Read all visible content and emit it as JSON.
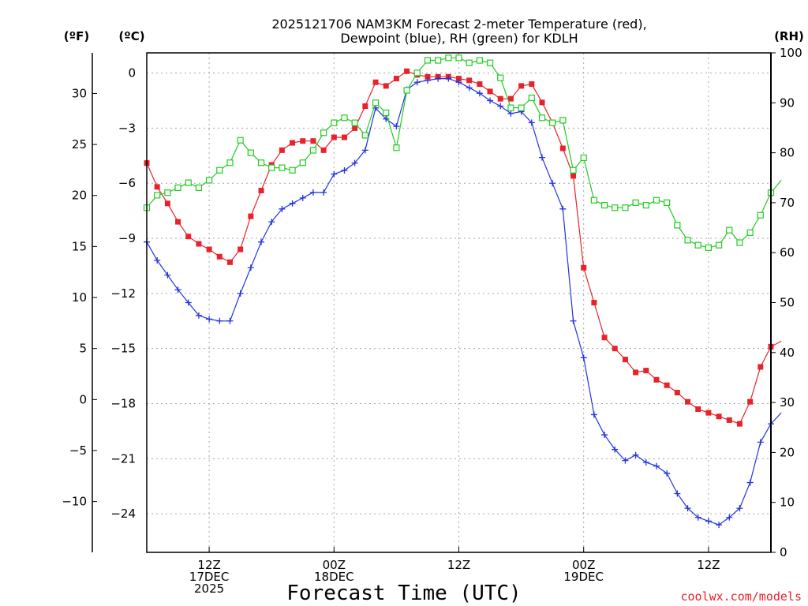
{
  "chart_data": {
    "type": "line",
    "title_line1": "2025121706 NAM3KM Forecast 2-meter Temperature (red),",
    "title_line2": "Dewpoint (blue), RH (green) for KDLH",
    "xlabel": "Forecast Time (UTC)",
    "credit": "coolwx.com/models",
    "units": {
      "fahrenheit": "(ºF)",
      "celsius": "(ºC)",
      "rh": "(RH)"
    },
    "x_range_hours": [
      0,
      60
    ],
    "celsius_axis": {
      "range": [
        -26.1,
        1.1
      ],
      "ticks": [
        0,
        -3,
        -6,
        -9,
        -12,
        -15,
        -18,
        -21,
        -24
      ]
    },
    "fahrenheit_axis": {
      "ticks": [
        30,
        25,
        20,
        15,
        10,
        5,
        0,
        -5,
        -10
      ],
      "labels": [
        "30",
        "25",
        "20",
        "15",
        "10",
        "5",
        "0",
        "−5",
        "−10"
      ]
    },
    "rh_axis": {
      "range": [
        0,
        100
      ],
      "ticks": [
        100,
        90,
        80,
        70,
        60,
        50,
        40,
        30,
        20,
        10,
        0
      ]
    },
    "x_ticks": [
      {
        "hour": 6,
        "lines": [
          "12Z",
          "17DEC",
          "2025"
        ]
      },
      {
        "hour": 18,
        "lines": [
          "00Z",
          "18DEC"
        ]
      },
      {
        "hour": 30,
        "lines": [
          "12Z"
        ]
      },
      {
        "hour": 42,
        "lines": [
          "00Z",
          "19DEC"
        ]
      },
      {
        "hour": 54,
        "lines": [
          "12Z"
        ]
      }
    ],
    "series": [
      {
        "name": "2-meter Temperature",
        "units": "C",
        "axis": "celsius",
        "color": "#e8222a",
        "marker": "filled-square",
        "values": [
          -4.9,
          -6.2,
          -7.1,
          -8.1,
          -8.9,
          -9.3,
          -9.6,
          -10.0,
          -10.3,
          -9.6,
          -7.8,
          -6.4,
          -5.0,
          -4.2,
          -3.8,
          -3.7,
          -3.7,
          -4.2,
          -3.5,
          -3.5,
          -3.0,
          -1.8,
          -0.5,
          -0.7,
          -0.3,
          0.1,
          -0.1,
          -0.2,
          -0.2,
          -0.2,
          -0.3,
          -0.4,
          -0.6,
          -1.0,
          -1.4,
          -1.4,
          -0.7,
          -0.6,
          -1.6,
          -2.7,
          -4.1,
          -5.6,
          -10.6,
          -12.5,
          -14.4,
          -15.0,
          -15.6,
          -16.3,
          -16.2,
          -16.7,
          -17.0,
          -17.4,
          -17.9,
          -18.3,
          -18.5,
          -18.7,
          -18.9,
          -19.1,
          -17.9,
          -16.0,
          -14.9,
          -14.6
        ]
      },
      {
        "name": "Dewpoint",
        "units": "C",
        "axis": "celsius",
        "color": "#2233e0",
        "marker": "plus",
        "values": [
          -9.2,
          -10.2,
          -11.0,
          -11.8,
          -12.5,
          -13.2,
          -13.4,
          -13.5,
          -13.5,
          -12.0,
          -10.6,
          -9.2,
          -8.1,
          -7.4,
          -7.1,
          -6.8,
          -6.5,
          -6.5,
          -5.5,
          -5.3,
          -4.9,
          -4.2,
          -1.9,
          -2.5,
          -2.9,
          -0.9,
          -0.5,
          -0.4,
          -0.3,
          -0.3,
          -0.5,
          -0.8,
          -1.1,
          -1.5,
          -1.8,
          -2.2,
          -2.1,
          -2.7,
          -4.6,
          -6.0,
          -7.4,
          -13.5,
          -15.5,
          -18.6,
          -19.7,
          -20.5,
          -21.1,
          -20.8,
          -21.2,
          -21.4,
          -21.8,
          -22.9,
          -23.7,
          -24.2,
          -24.4,
          -24.6,
          -24.2,
          -23.7,
          -22.3,
          -20.1,
          -19.1,
          -18.5
        ]
      },
      {
        "name": "RH",
        "units": "%",
        "axis": "rh",
        "color": "#22cc22",
        "marker": "open-square",
        "values": [
          69,
          71.5,
          72,
          73,
          74,
          73,
          74.5,
          76.5,
          78,
          82.5,
          80,
          78,
          77,
          77,
          76.5,
          78,
          80.5,
          84,
          86,
          87,
          86,
          83.5,
          90,
          88,
          81,
          92.5,
          96,
          98.5,
          98.5,
          99,
          99,
          98,
          98.5,
          98,
          95,
          89,
          89,
          91,
          87,
          86,
          86.5,
          76.5,
          79,
          70.5,
          69.5,
          69,
          69,
          70,
          69.5,
          70.5,
          70,
          65.5,
          62.5,
          61.5,
          61,
          61.5,
          64.5,
          62,
          64,
          67.5,
          72,
          74.5
        ]
      }
    ]
  }
}
